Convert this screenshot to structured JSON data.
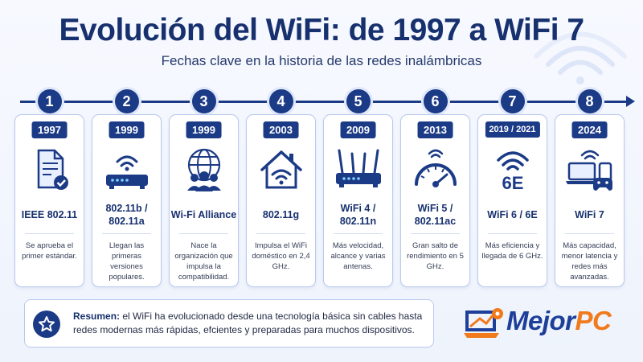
{
  "header": {
    "title": "Evolución del WiFi: de 1997 a WiFi 7",
    "subtitle": "Fechas clave en la historia de las redes inalámbricas"
  },
  "milestones": [
    {
      "step": "1",
      "year": "1997",
      "standard": "IEEE 802.11",
      "desc": "Se aprueba el primer estándar.",
      "icon": "document-check-icon"
    },
    {
      "step": "2",
      "year": "1999",
      "standard": "802.11b / 802.11a",
      "desc": "Llegan las primeras versiones populares.",
      "icon": "router-icon"
    },
    {
      "step": "3",
      "year": "1999",
      "standard": "Wi-Fi Alliance",
      "desc": "Nace la organización que impulsa la compatibilidad.",
      "icon": "globe-people-icon"
    },
    {
      "step": "4",
      "year": "2003",
      "standard": "802.11g",
      "desc": "Impulsa el WiFi doméstico en 2,4 GHz.",
      "icon": "home-wifi-icon"
    },
    {
      "step": "5",
      "year": "2009",
      "standard": "WiFi 4 / 802.11n",
      "desc": "Más velocidad, alcance y varias antenas.",
      "icon": "multi-antenna-router-icon"
    },
    {
      "step": "6",
      "year": "2013",
      "standard": "WiFi 5 / 802.11ac",
      "desc": "Gran salto de rendimiento en 5 GHz.",
      "icon": "speedometer-icon"
    },
    {
      "step": "7",
      "year": "2019 / 2021",
      "standard": "WiFi 6 / 6E",
      "desc": "Más eficiencia y llegada de 6 GHz.",
      "icon": "wifi-6e-icon",
      "icon_text": "6E"
    },
    {
      "step": "8",
      "year": "2024",
      "standard": "WiFi 7",
      "desc": "Más capacidad, menor latencia y redes más avanzadas.",
      "icon": "devices-icon"
    }
  ],
  "summary": {
    "label": "Resumen:",
    "text": " el  WiFi ha evolucionado desde una tecnología básica sin cables hasta redes modernas más rápidas, efcientes y preparadas para muchos dispositivos.",
    "icon": "star-icon"
  },
  "brand": {
    "name_part1": "Mejor",
    "name_part2": "PC",
    "icon": "laptop-gear-icon"
  },
  "colors": {
    "primary": "#1c3b86",
    "accent": "#f07a1c"
  }
}
